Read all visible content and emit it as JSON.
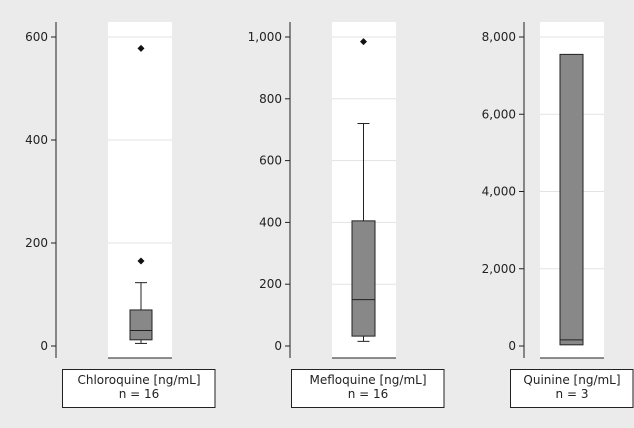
{
  "chart_data": [
    {
      "type": "box",
      "panel": "chloroquine",
      "label_line1": "Chloroquine [ng/mL]",
      "label_line2": "n = 16",
      "ylim": [
        0,
        620
      ],
      "yticks": [
        0,
        200,
        400,
        600
      ],
      "ytick_labels": [
        "0",
        "200",
        "400",
        "600"
      ],
      "grid": true,
      "box": {
        "whisker_low": 5,
        "q1": 12,
        "median": 30,
        "q3": 70,
        "whisker_high": 123
      },
      "outliers": [
        165,
        578
      ]
    },
    {
      "type": "box",
      "panel": "mefloquine",
      "label_line1": "Mefloquine [ng/mL]",
      "label_line2": "n = 16",
      "ylim": [
        0,
        1030
      ],
      "yticks": [
        0,
        200,
        400,
        600,
        800,
        1000
      ],
      "ytick_labels": [
        "0",
        "200",
        "400",
        "600",
        "800",
        "1,000"
      ],
      "grid": true,
      "box": {
        "whisker_low": 15,
        "q1": 32,
        "median": 150,
        "q3": 405,
        "whisker_high": 720
      },
      "outliers": [
        985
      ]
    },
    {
      "type": "box",
      "panel": "quinine",
      "label_line1": "Quinine [ng/mL]",
      "label_line2": "n = 3",
      "ylim": [
        0,
        8200
      ],
      "yticks": [
        0,
        2000,
        4000,
        6000,
        8000
      ],
      "ytick_labels": [
        "0",
        "2,000",
        "4,000",
        "6,000",
        "8,000"
      ],
      "grid": true,
      "box": {
        "whisker_low": 30,
        "q1": 30,
        "median": 160,
        "q3": 7550,
        "whisker_high": 7550
      },
      "outliers": []
    }
  ],
  "colors": {
    "background": "#ebebeb",
    "plot_background": "#ffffff",
    "gridline": "#e3e3e3",
    "box_fill": "#888888",
    "stroke": "#222222",
    "outlier": "#111111"
  }
}
